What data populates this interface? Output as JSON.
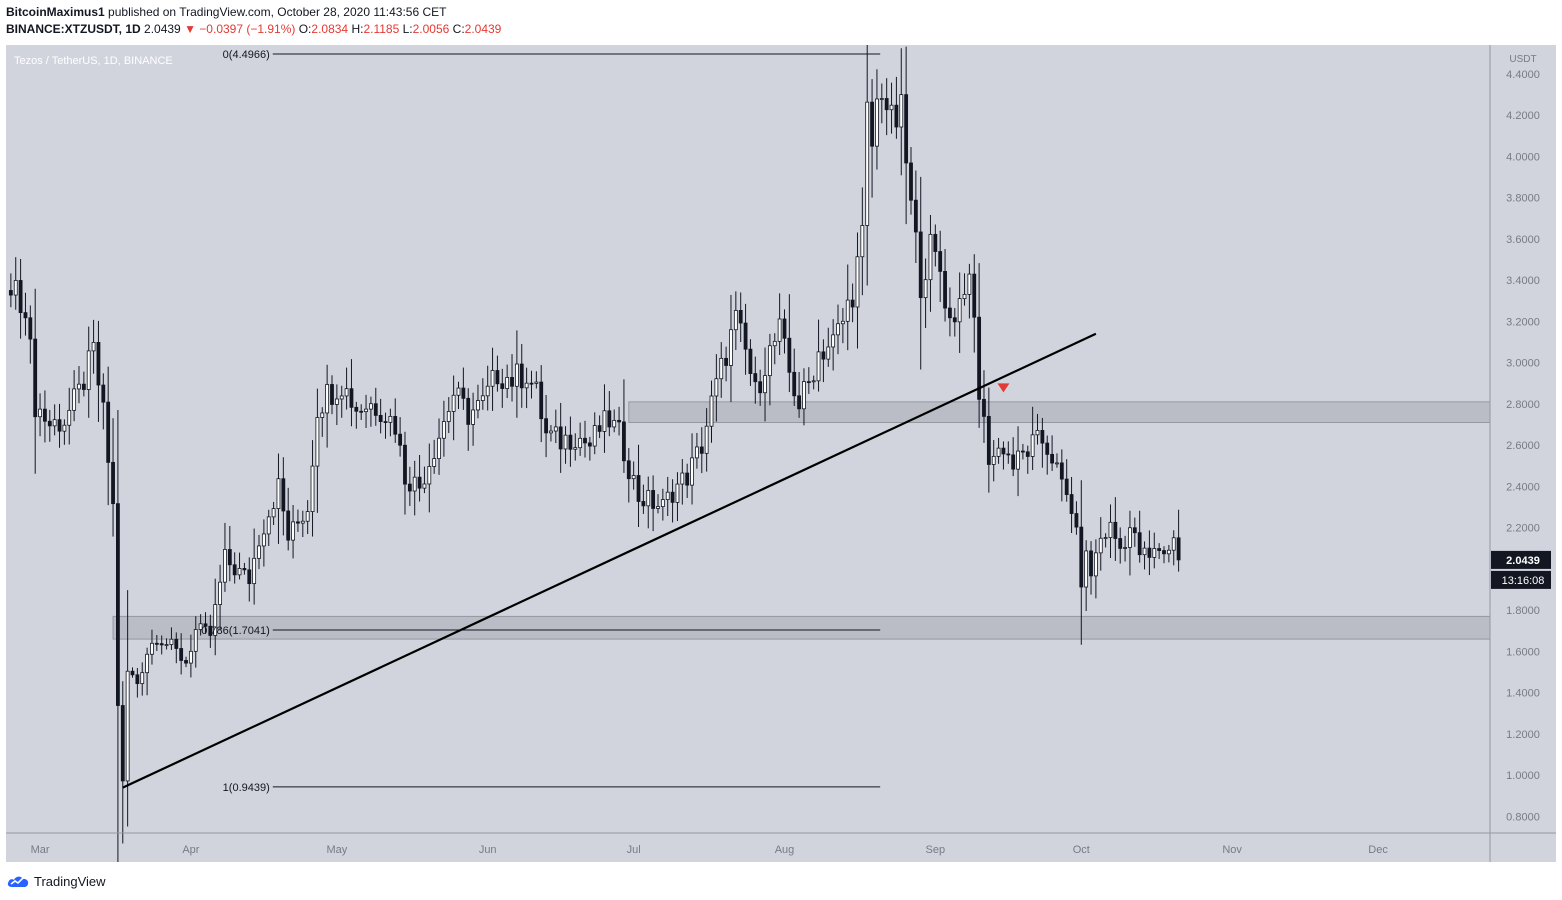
{
  "header": {
    "author": "BitcoinMaximus1",
    "published_text": "published on TradingView.com, October 28, 2020 11:43:56 CET",
    "symbol": "BINANCE:XTZUSDT, 1D",
    "last_price": "2.0439",
    "change": "−0.0397 (−1.91%)",
    "o_label": "O:",
    "o_value": "2.0834",
    "h_label": "H:",
    "h_value": "2.1185",
    "l_label": "L:",
    "l_value": "2.0056",
    "c_label": "C:",
    "c_value": "2.0439"
  },
  "footer": {
    "brand": "TradingView"
  },
  "colors": {
    "plot_bg": "#d1d4dc",
    "candle": "#131722",
    "up_fill": "#ffffff",
    "zone": "#b2b5be",
    "arrow": "#e53935",
    "price_tag_bg": "#131722"
  },
  "chart_data": {
    "type": "candlestick",
    "title": "Tezos / TetherUS, 1D, BINANCE",
    "currency_label": "USDT",
    "ylim": [
      0.72,
      4.54
    ],
    "y_ticks": [
      "4.4000",
      "4.2000",
      "4.0000",
      "3.8000",
      "3.6000",
      "3.4000",
      "3.2000",
      "3.0000",
      "2.8000",
      "2.6000",
      "2.4000",
      "2.2000",
      "1.8000",
      "1.6000",
      "1.4000",
      "1.2000",
      "1.0000",
      "0.8000"
    ],
    "x_ticks": [
      {
        "label": "Mar",
        "day": 3
      },
      {
        "label": "Apr",
        "day": 34
      },
      {
        "label": "May",
        "day": 64
      },
      {
        "label": "Jun",
        "day": 95
      },
      {
        "label": "Jul",
        "day": 125
      },
      {
        "label": "Aug",
        "day": 156
      },
      {
        "label": "Sep",
        "day": 187
      },
      {
        "label": "Oct",
        "day": 217
      },
      {
        "label": "Nov",
        "day": 248
      },
      {
        "label": "Dec",
        "day": 278
      }
    ],
    "x_range_days": [
      -4,
      301
    ],
    "last_day": 237,
    "current_price": "2.0439",
    "countdown": "13:16:08",
    "price_anchors": [
      [
        -4,
        3.35
      ],
      [
        0,
        3.3
      ],
      [
        2,
        2.8
      ],
      [
        5,
        2.7
      ],
      [
        8,
        2.72
      ],
      [
        11,
        2.85
      ],
      [
        14,
        3.05
      ],
      [
        16,
        2.75
      ],
      [
        18,
        2.3
      ],
      [
        19,
        1.35
      ],
      [
        20,
        0.96
      ],
      [
        21,
        1.5
      ],
      [
        23,
        1.45
      ],
      [
        25,
        1.6
      ],
      [
        27,
        1.68
      ],
      [
        30,
        1.62
      ],
      [
        33,
        1.55
      ],
      [
        35,
        1.7
      ],
      [
        38,
        1.68
      ],
      [
        41,
        2.05
      ],
      [
        43,
        2.0
      ],
      [
        46,
        1.95
      ],
      [
        48,
        2.15
      ],
      [
        52,
        2.4
      ],
      [
        54,
        2.15
      ],
      [
        58,
        2.3
      ],
      [
        60,
        2.78
      ],
      [
        62,
        2.85
      ],
      [
        65,
        2.9
      ],
      [
        68,
        2.78
      ],
      [
        71,
        2.8
      ],
      [
        73,
        2.78
      ],
      [
        76,
        2.7
      ],
      [
        78,
        2.45
      ],
      [
        81,
        2.4
      ],
      [
        85,
        2.65
      ],
      [
        88,
        2.85
      ],
      [
        91,
        2.75
      ],
      [
        94,
        2.8
      ],
      [
        97,
        2.95
      ],
      [
        100,
        2.92
      ],
      [
        103,
        2.95
      ],
      [
        105,
        2.85
      ],
      [
        107,
        2.65
      ],
      [
        110,
        2.62
      ],
      [
        113,
        2.65
      ],
      [
        116,
        2.6
      ],
      [
        118,
        2.68
      ],
      [
        120,
        2.72
      ],
      [
        122,
        2.65
      ],
      [
        124,
        2.5
      ],
      [
        126,
        2.35
      ],
      [
        129,
        2.32
      ],
      [
        131,
        2.3
      ],
      [
        133,
        2.38
      ],
      [
        136,
        2.45
      ],
      [
        139,
        2.6
      ],
      [
        141,
        2.8
      ],
      [
        144,
        3.05
      ],
      [
        146,
        3.2
      ],
      [
        148,
        3.05
      ],
      [
        150,
        2.85
      ],
      [
        152,
        3.0
      ],
      [
        155,
        3.15
      ],
      [
        157,
        2.95
      ],
      [
        159,
        2.8
      ],
      [
        161,
        2.9
      ],
      [
        163,
        3.05
      ],
      [
        166,
        3.1
      ],
      [
        168,
        3.2
      ],
      [
        170,
        3.35
      ],
      [
        172,
        3.6
      ],
      [
        173,
        4.2
      ],
      [
        174,
        4.05
      ],
      [
        175,
        4.25
      ],
      [
        176,
        4.35
      ],
      [
        178,
        4.15
      ],
      [
        180,
        4.2
      ],
      [
        182,
        3.75
      ],
      [
        184,
        3.4
      ],
      [
        186,
        3.55
      ],
      [
        188,
        3.45
      ],
      [
        190,
        3.2
      ],
      [
        192,
        3.3
      ],
      [
        193,
        3.4
      ],
      [
        194,
        3.35
      ],
      [
        195,
        3.2
      ],
      [
        196,
        2.85
      ],
      [
        197,
        2.7
      ],
      [
        198,
        2.55
      ],
      [
        199,
        2.55
      ],
      [
        201,
        2.6
      ],
      [
        203,
        2.5
      ],
      [
        205,
        2.55
      ],
      [
        207,
        2.6
      ],
      [
        209,
        2.62
      ],
      [
        211,
        2.55
      ],
      [
        213,
        2.4
      ],
      [
        215,
        2.3
      ],
      [
        216,
        2.15
      ],
      [
        217,
        1.95
      ],
      [
        218,
        2.05
      ],
      [
        219,
        1.98
      ],
      [
        221,
        2.15
      ],
      [
        223,
        2.2
      ],
      [
        225,
        2.1
      ],
      [
        227,
        2.2
      ],
      [
        229,
        2.08
      ],
      [
        231,
        2.05
      ],
      [
        233,
        2.1
      ],
      [
        235,
        2.08
      ],
      [
        236,
        2.18
      ],
      [
        238,
        2.25
      ],
      [
        240,
        2.35
      ],
      [
        241,
        2.4
      ],
      [
        242,
        2.3
      ],
      [
        244,
        2.22
      ],
      [
        246,
        2.2
      ],
      [
        248,
        2.15
      ],
      [
        250,
        2.25
      ],
      [
        252,
        2.22
      ],
      [
        254,
        2.05
      ],
      [
        255,
        2.1
      ],
      [
        256,
        2.2
      ],
      [
        258,
        2.15
      ],
      [
        259,
        2.08
      ],
      [
        260,
        2.05
      ]
    ],
    "fib_levels": [
      {
        "label": "0(4.4966)",
        "value": 4.4966
      },
      {
        "label": "0.786(1.7041)",
        "value": 1.7041
      },
      {
        "label": "1(0.9439)",
        "value": 0.9439
      }
    ],
    "fib_day_range": [
      20,
      173
    ],
    "zones": [
      {
        "from": 2.71,
        "to": 2.81,
        "start_day": 124
      },
      {
        "from": 1.66,
        "to": 1.77,
        "start_day": 18
      }
    ],
    "trendline": {
      "from": [
        20,
        0.94
      ],
      "to": [
        220,
        3.14
      ]
    },
    "breakdown_marker": {
      "day": 201,
      "price": 2.88
    }
  }
}
